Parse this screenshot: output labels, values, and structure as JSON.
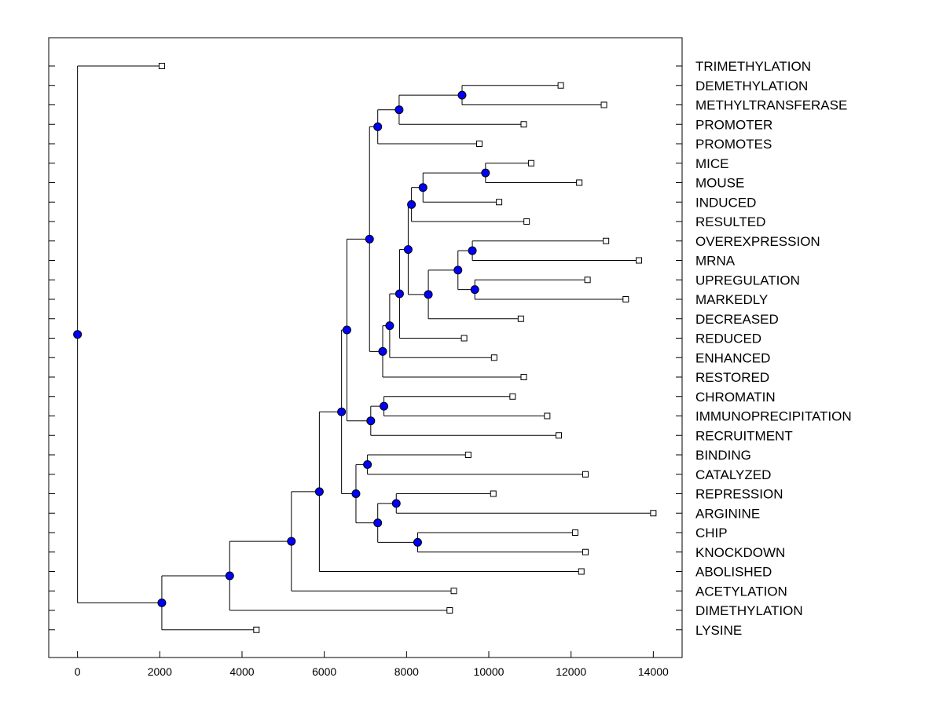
{
  "chart_data": {
    "type": "dendrogram",
    "orientation": "horizontal",
    "xlim": [
      -700,
      14700
    ],
    "xticks": [
      0,
      2000,
      4000,
      6000,
      8000,
      10000,
      12000,
      14000
    ],
    "xtick_labels": [
      "0",
      "2000",
      "4000",
      "6000",
      "8000",
      "10000",
      "12000",
      "14000"
    ],
    "colors": {
      "node_fill": "#0000ff",
      "line": "#000000",
      "leaf_fill": "#ffffff"
    },
    "root": {
      "x": 0,
      "children": [
        {
          "leaf": "TRIMETHYLATION",
          "x": 2050
        },
        {
          "x": 2050,
          "children": [
            {
              "x": 3700,
              "children": [
                {
                  "x": 5200,
                  "children": [
                    {
                      "x": 5880,
                      "children": [
                        {
                          "x": 6420,
                          "children": [
                            {
                              "x": 6550,
                              "children": [
                                {
                                  "x": 7100,
                                  "children": [
                                    {
                                      "x": 7300,
                                      "children": [
                                        {
                                          "x": 7820,
                                          "children": [
                                            {
                                              "x": 9350,
                                              "children": [
                                                {
                                                  "leaf": "DEMETHYLATION",
                                                  "x": 11750
                                                },
                                                {
                                                  "leaf": "METHYLTRANSFERASE",
                                                  "x": 12800
                                                }
                                              ]
                                            },
                                            {
                                              "leaf": "PROMOTER",
                                              "x": 10850
                                            }
                                          ]
                                        },
                                        {
                                          "leaf": "PROMOTES",
                                          "x": 9770
                                        }
                                      ]
                                    },
                                    {
                                      "x": 7420,
                                      "children": [
                                        {
                                          "x": 7590,
                                          "children": [
                                            {
                                              "x": 7830,
                                              "children": [
                                                {
                                                  "x": 8040,
                                                  "children": [
                                                    {
                                                      "x": 8120,
                                                      "children": [
                                                        {
                                                          "x": 8400,
                                                          "children": [
                                                            {
                                                              "x": 9920,
                                                              "children": [
                                                                {
                                                                  "leaf": "MICE",
                                                                  "x": 11030
                                                                },
                                                                {
                                                                  "leaf": "MOUSE",
                                                                  "x": 12200
                                                                }
                                                              ]
                                                            },
                                                            {
                                                              "leaf": "INDUCED",
                                                              "x": 10250
                                                            }
                                                          ]
                                                        },
                                                        {
                                                          "leaf": "RESULTED",
                                                          "x": 10920
                                                        }
                                                      ]
                                                    },
                                                    {
                                                      "x": 8530,
                                                      "children": [
                                                        {
                                                          "x": 9250,
                                                          "children": [
                                                            {
                                                              "x": 9600,
                                                              "children": [
                                                                {
                                                                  "leaf": "OVEREXPRESSION",
                                                                  "x": 12850
                                                                },
                                                                {
                                                                  "leaf": "MRNA",
                                                                  "x": 13650
                                                                }
                                                              ]
                                                            },
                                                            {
                                                              "x": 9660,
                                                              "children": [
                                                                {
                                                                  "leaf": "UPREGULATION",
                                                                  "x": 12400
                                                                },
                                                                {
                                                                  "leaf": "MARKEDLY",
                                                                  "x": 13330
                                                                }
                                                              ]
                                                            }
                                                          ]
                                                        },
                                                        {
                                                          "leaf": "DECREASED",
                                                          "x": 10780
                                                        }
                                                      ]
                                                    }
                                                  ]
                                                },
                                                {
                                                  "leaf": "REDUCED",
                                                  "x": 9400
                                                }
                                              ]
                                            },
                                            {
                                              "leaf": "ENHANCED",
                                              "x": 10130
                                            }
                                          ]
                                        },
                                        {
                                          "leaf": "RESTORED",
                                          "x": 10850
                                        }
                                      ]
                                    }
                                  ]
                                },
                                {
                                  "x": 7130,
                                  "children": [
                                    {
                                      "x": 7450,
                                      "children": [
                                        {
                                          "leaf": "CHROMATIN",
                                          "x": 10580
                                        },
                                        {
                                          "leaf": "IMMUNOPRECIPITATION",
                                          "x": 11420
                                        }
                                      ]
                                    },
                                    {
                                      "leaf": "RECRUITMENT",
                                      "x": 11700
                                    }
                                  ]
                                }
                              ]
                            },
                            {
                              "x": 6770,
                              "children": [
                                {
                                  "x": 7050,
                                  "children": [
                                    {
                                      "leaf": "BINDING",
                                      "x": 9500
                                    },
                                    {
                                      "leaf": "CATALYZED",
                                      "x": 12350
                                    }
                                  ]
                                },
                                {
                                  "x": 7300,
                                  "children": [
                                    {
                                      "x": 7750,
                                      "children": [
                                        {
                                          "leaf": "REPRESSION",
                                          "x": 10110
                                        },
                                        {
                                          "leaf": "ARGININE",
                                          "x": 14000
                                        }
                                      ]
                                    },
                                    {
                                      "x": 8270,
                                      "children": [
                                        {
                                          "leaf": "CHIP",
                                          "x": 12100
                                        },
                                        {
                                          "leaf": "KNOCKDOWN",
                                          "x": 12350
                                        }
                                      ]
                                    }
                                  ]
                                }
                              ]
                            }
                          ]
                        },
                        {
                          "leaf": "ABOLISHED",
                          "x": 12250
                        }
                      ]
                    },
                    {
                      "leaf": "ACETYLATION",
                      "x": 9150
                    }
                  ]
                },
                {
                  "leaf": "DIMETHYLATION",
                  "x": 9050
                }
              ]
            },
            {
              "leaf": "LYSINE",
              "x": 4350
            }
          ]
        }
      ]
    }
  }
}
